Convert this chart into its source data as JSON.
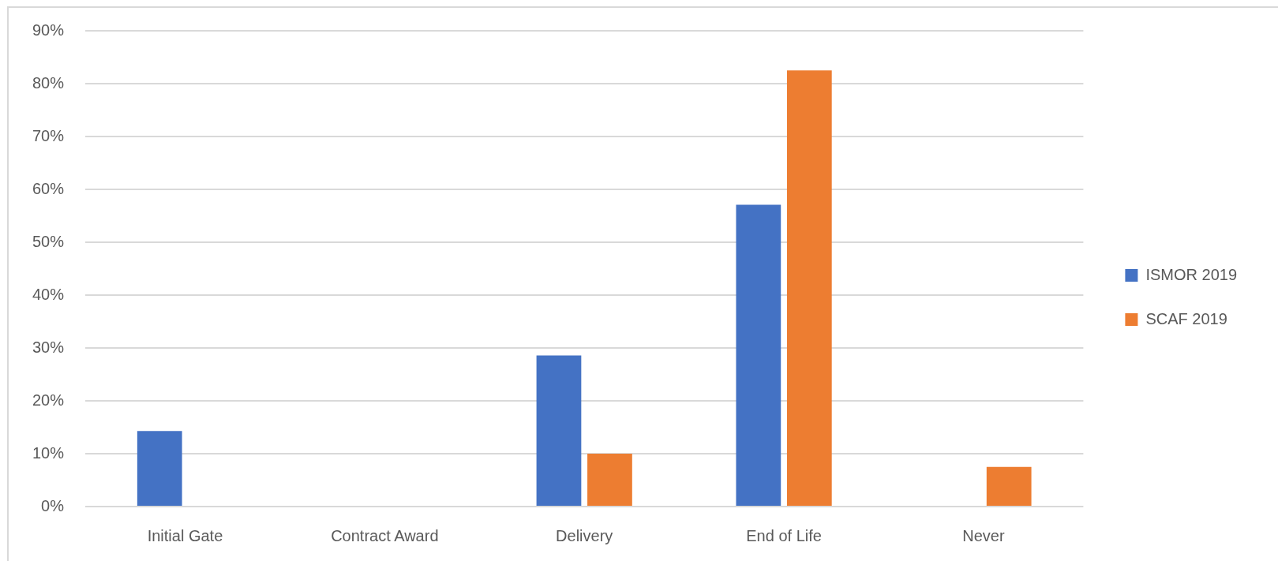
{
  "chart_data": {
    "type": "bar",
    "categories": [
      "Initial Gate",
      "Contract Award",
      "Delivery",
      "End of Life",
      "Never"
    ],
    "series": [
      {
        "name": "ISMOR 2019",
        "color": "#4472c4",
        "values": [
          14.3,
          0,
          28.6,
          57.1,
          0
        ]
      },
      {
        "name": "SCAF 2019",
        "color": "#ed7d31",
        "values": [
          0,
          0,
          10,
          82.5,
          7.5
        ]
      }
    ],
    "ylim": [
      0,
      90
    ],
    "yticks": [
      {
        "value": 0,
        "label": "0%"
      },
      {
        "value": 10,
        "label": "10%"
      },
      {
        "value": 20,
        "label": "20%"
      },
      {
        "value": 30,
        "label": "30%"
      },
      {
        "value": 40,
        "label": "40%"
      },
      {
        "value": 50,
        "label": "50%"
      },
      {
        "value": 60,
        "label": "60%"
      },
      {
        "value": 70,
        "label": "70%"
      },
      {
        "value": 80,
        "label": "80%"
      },
      {
        "value": 90,
        "label": "90%"
      }
    ],
    "grid": "y",
    "legend": "right"
  }
}
